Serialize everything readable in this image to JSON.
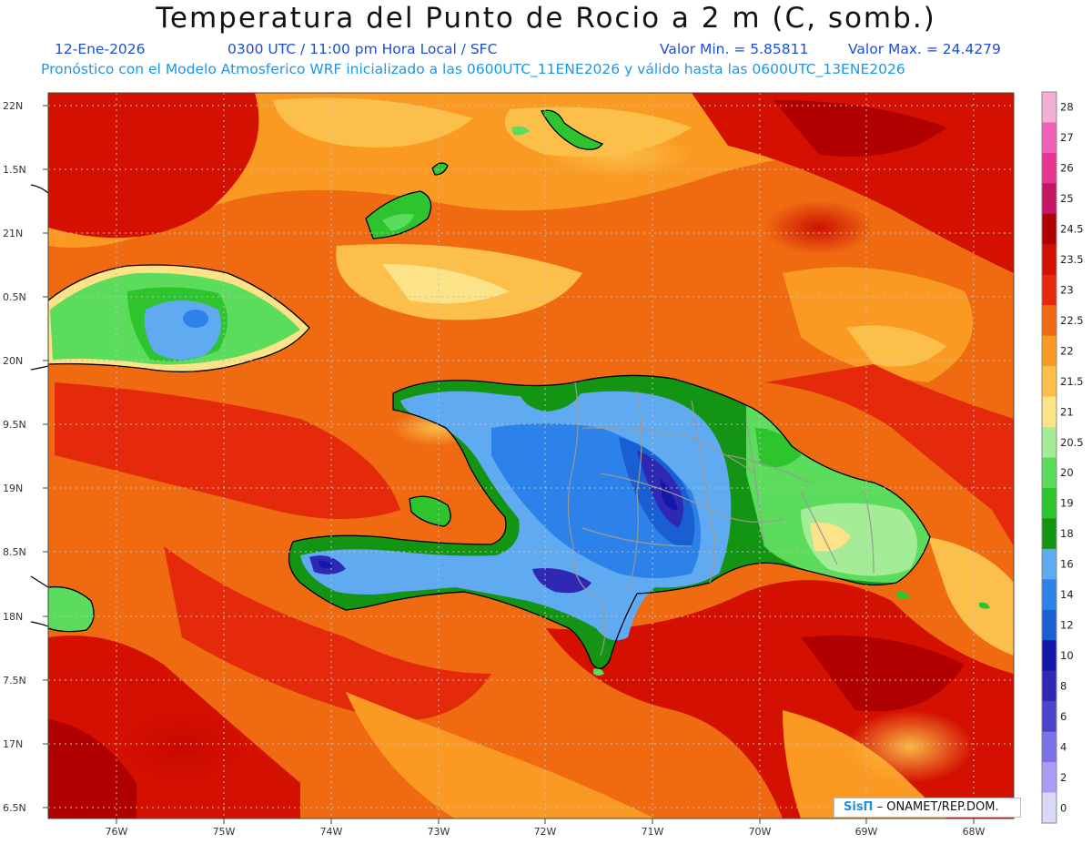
{
  "title": "Temperatura del Punto de Rocio a 2 m (C, somb.)",
  "subtitle": {
    "date": "12-Ene-2026",
    "time": "0300 UTC / 11:00 pm Hora Local / SFC",
    "min": "Valor Min. = 5.85811",
    "max": "Valor Max. = 24.4279",
    "model_line": "Pronóstico con el Modelo Atmosferico WRF inicializado a las 0600UTC_11ENE2026 y válido hasta las  0600UTC_13ENE2026"
  },
  "axes": {
    "lat_labels": [
      "22N",
      "1.5N",
      "21N",
      "0.5N",
      "20N",
      "9.5N",
      "19N",
      "8.5N",
      "18N",
      "7.5N",
      "17N",
      "6.5N"
    ],
    "lon_labels": [
      "76W",
      "75W",
      "74W",
      "73W",
      "72W",
      "71W",
      "70W",
      "69W",
      "68W"
    ]
  },
  "colorbar": {
    "levels": [
      "28",
      "27",
      "26",
      "25",
      "24.5",
      "23.5",
      "23",
      "22.5",
      "22",
      "21.5",
      "21",
      "20.5",
      "20",
      "19",
      "18",
      "16",
      "14",
      "12",
      "10",
      "8",
      "6",
      "4",
      "2",
      "0"
    ],
    "colors": [
      "#f3b0d6",
      "#ef60b8",
      "#e83590",
      "#c41662",
      "#b00000",
      "#d41000",
      "#e42a0a",
      "#f06a12",
      "#fb9a22",
      "#fcc04a",
      "#fde387",
      "#a4ec96",
      "#5cdc5c",
      "#2ec42e",
      "#139513",
      "#60aaf2",
      "#2c82e8",
      "#1a5ed4",
      "#1416a8",
      "#2e28b4",
      "#4a44cc",
      "#7c72e6",
      "#a89cf4",
      "#d8d8f8"
    ]
  },
  "credit": {
    "logo": "SisΠ",
    "text": "– ONAMET/REP.DOM."
  }
}
